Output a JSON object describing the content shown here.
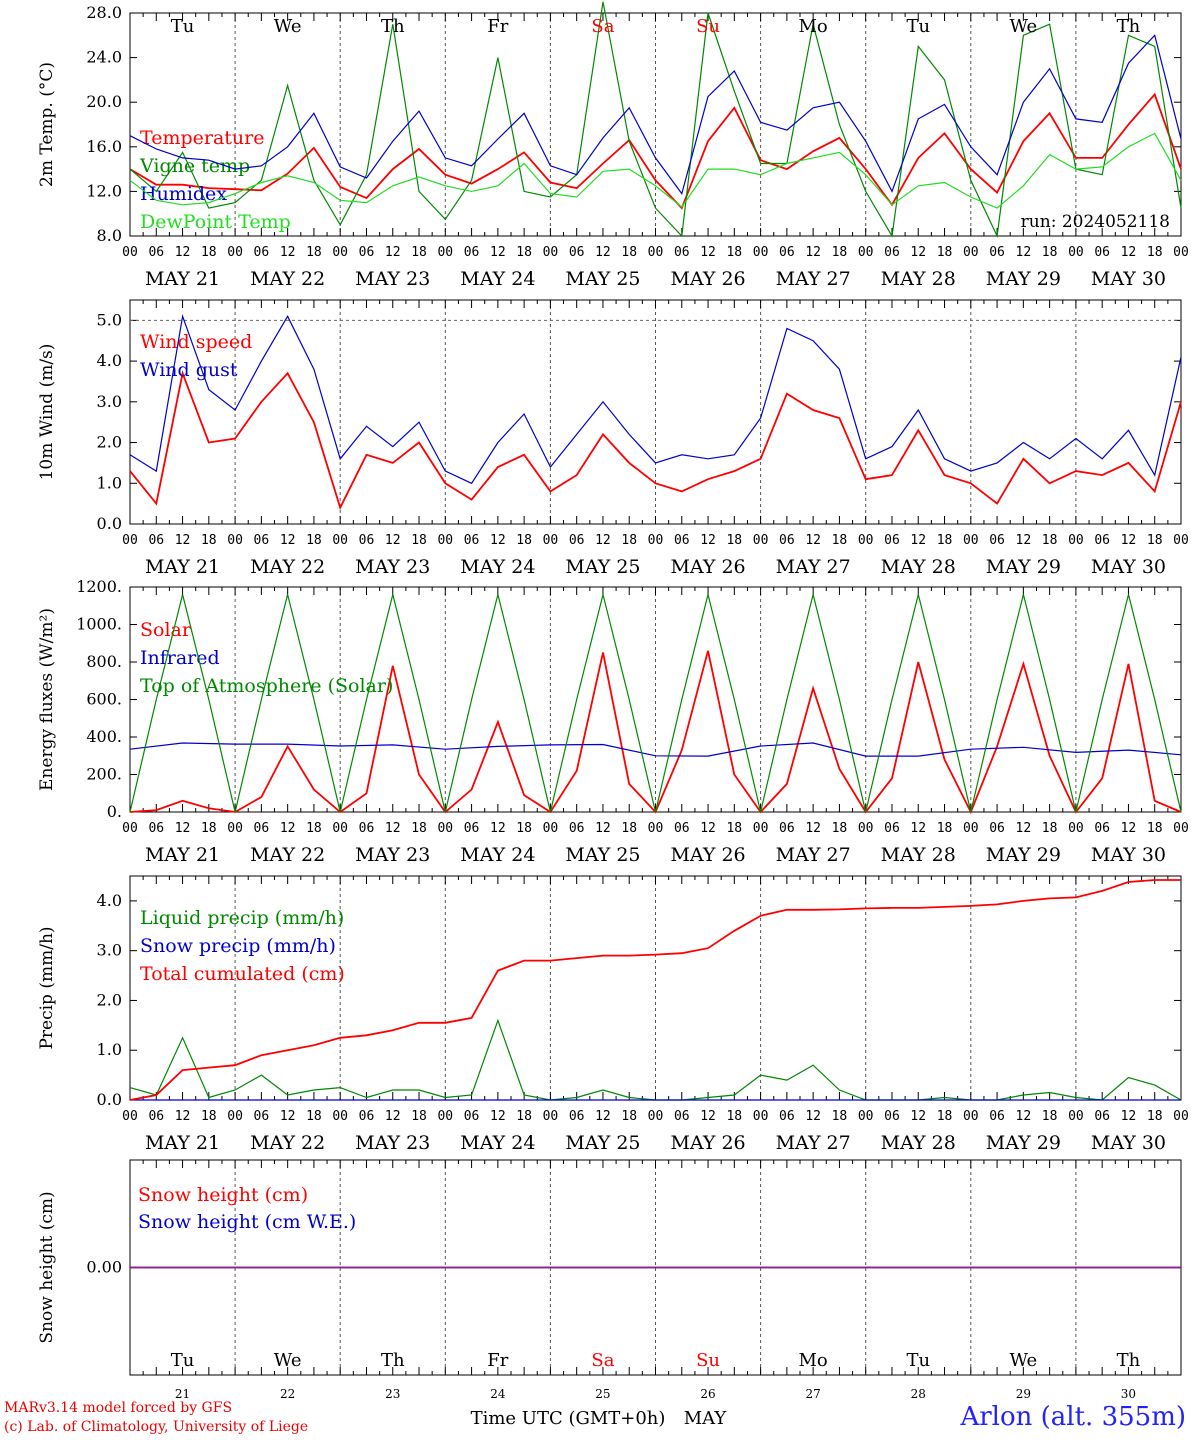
{
  "chart_data": [
    {
      "type": "line",
      "ylabel": "2m Temp. (°C)",
      "ylim": [
        8,
        28
      ],
      "yticks": [
        "8.0",
        "12.0",
        "16.0",
        "20.0",
        "24.0",
        "28.0"
      ],
      "run_label": "run: 2024052118",
      "series": [
        {
          "name": "Temperature",
          "color": "#ff0000",
          "x": [
            0,
            6,
            12,
            18,
            24,
            30,
            36,
            42,
            48,
            54,
            60,
            66,
            72,
            78,
            84,
            90,
            96,
            102,
            108,
            114,
            120,
            126,
            132,
            138,
            144,
            150,
            156,
            162,
            168,
            174,
            180,
            186,
            192,
            198,
            204,
            210,
            216,
            222,
            228,
            234,
            240
          ],
          "values": [
            14.0,
            12.6,
            12.6,
            12.3,
            12.2,
            12.1,
            13.6,
            15.9,
            12.4,
            11.4,
            14.0,
            15.8,
            13.5,
            12.7,
            14.0,
            15.5,
            12.8,
            12.3,
            14.5,
            16.6,
            13.0,
            10.5,
            16.5,
            19.5,
            14.8,
            14.0,
            15.6,
            16.8,
            14.0,
            10.8,
            15.0,
            17.2,
            14.0,
            11.9,
            16.5,
            19.0,
            15.0,
            15.0,
            18.0,
            20.7,
            14.0
          ]
        },
        {
          "name": "Vigne temp",
          "color": "#008800",
          "x": [
            0,
            6,
            12,
            18,
            24,
            30,
            36,
            42,
            48,
            54,
            60,
            66,
            72,
            78,
            84,
            90,
            96,
            102,
            108,
            114,
            120,
            126,
            132,
            138,
            144,
            150,
            156,
            162,
            168,
            174,
            180,
            186,
            192,
            198,
            204,
            210,
            216,
            222,
            228,
            234,
            240
          ],
          "values": [
            14.0,
            12.0,
            15.5,
            10.5,
            11.0,
            13.0,
            21.5,
            13.0,
            9.0,
            13.5,
            27.0,
            12.0,
            9.5,
            13.0,
            24.0,
            12.0,
            11.5,
            13.5,
            29.0,
            16.5,
            10.5,
            8.0,
            28.0,
            21.0,
            14.5,
            14.5,
            27.0,
            18.0,
            12.0,
            8.0,
            25.0,
            22.0,
            13.0,
            8.0,
            26.0,
            27.0,
            14.0,
            13.5,
            26.0,
            25.0,
            10.5
          ]
        },
        {
          "name": "Humidex",
          "color": "#0000cc",
          "x": [
            0,
            6,
            12,
            18,
            24,
            30,
            36,
            42,
            48,
            54,
            60,
            66,
            72,
            78,
            84,
            90,
            96,
            102,
            108,
            114,
            120,
            126,
            132,
            138,
            144,
            150,
            156,
            162,
            168,
            174,
            180,
            186,
            192,
            198,
            204,
            210,
            216,
            222,
            228,
            234,
            240
          ],
          "values": [
            17.0,
            15.8,
            15.0,
            14.8,
            14.0,
            14.3,
            16.0,
            19.0,
            14.2,
            13.2,
            16.5,
            19.2,
            15.0,
            14.3,
            16.7,
            19.0,
            14.3,
            13.5,
            16.8,
            19.5,
            15.0,
            11.8,
            20.5,
            22.8,
            18.2,
            17.5,
            19.5,
            20.0,
            16.5,
            12.0,
            18.5,
            19.8,
            16.0,
            13.5,
            20.0,
            23.0,
            18.5,
            18.2,
            23.5,
            26.0,
            16.7
          ]
        },
        {
          "name": "DewPoint Temp",
          "color": "#22dd22",
          "x": [
            0,
            6,
            12,
            18,
            24,
            30,
            36,
            42,
            48,
            54,
            60,
            66,
            72,
            78,
            84,
            90,
            96,
            102,
            108,
            114,
            120,
            126,
            132,
            138,
            144,
            150,
            156,
            162,
            168,
            174,
            180,
            186,
            192,
            198,
            204,
            210,
            216,
            222,
            228,
            234,
            240
          ],
          "values": [
            13.0,
            11.2,
            10.8,
            11.0,
            11.8,
            12.8,
            13.4,
            12.8,
            11.2,
            11.0,
            12.5,
            13.3,
            12.5,
            12.0,
            12.5,
            14.5,
            11.8,
            11.5,
            13.8,
            14.0,
            12.5,
            10.6,
            14.0,
            14.0,
            13.5,
            14.5,
            15.0,
            15.5,
            13.5,
            10.8,
            12.5,
            12.8,
            11.5,
            10.5,
            12.5,
            15.3,
            14.0,
            14.2,
            16.0,
            17.2,
            13.0
          ]
        }
      ]
    },
    {
      "type": "line",
      "ylabel": "10m Wind (m/s)",
      "ylim": [
        0,
        5.5
      ],
      "yticks": [
        "0.0",
        "1.0",
        "2.0",
        "3.0",
        "4.0",
        "5.0"
      ],
      "series": [
        {
          "name": "Wind speed",
          "color": "#ff0000",
          "x": [
            0,
            6,
            12,
            18,
            24,
            30,
            36,
            42,
            48,
            54,
            60,
            66,
            72,
            78,
            84,
            90,
            96,
            102,
            108,
            114,
            120,
            126,
            132,
            138,
            144,
            150,
            156,
            162,
            168,
            174,
            180,
            186,
            192,
            198,
            204,
            210,
            216,
            222,
            228,
            234,
            240
          ],
          "values": [
            1.3,
            0.5,
            3.7,
            2.0,
            2.1,
            3.0,
            3.7,
            2.5,
            0.4,
            1.7,
            1.5,
            2.0,
            1.0,
            0.6,
            1.4,
            1.7,
            0.8,
            1.2,
            2.2,
            1.5,
            1.0,
            0.8,
            1.1,
            1.3,
            1.6,
            3.2,
            2.8,
            2.6,
            1.1,
            1.2,
            2.3,
            1.2,
            1.0,
            0.5,
            1.6,
            1.0,
            1.3,
            1.2,
            1.5,
            0.8,
            3.0
          ]
        },
        {
          "name": "Wind gust",
          "color": "#0000cc",
          "x": [
            0,
            6,
            12,
            18,
            24,
            30,
            36,
            42,
            48,
            54,
            60,
            66,
            72,
            78,
            84,
            90,
            96,
            102,
            108,
            114,
            120,
            126,
            132,
            138,
            144,
            150,
            156,
            162,
            168,
            174,
            180,
            186,
            192,
            198,
            204,
            210,
            216,
            222,
            228,
            234,
            240
          ],
          "values": [
            1.7,
            1.3,
            5.1,
            3.3,
            2.8,
            4.0,
            5.1,
            3.8,
            1.6,
            2.4,
            1.9,
            2.5,
            1.3,
            1.0,
            2.0,
            2.7,
            1.4,
            2.2,
            3.0,
            2.2,
            1.5,
            1.7,
            1.6,
            1.7,
            2.6,
            4.8,
            4.5,
            3.8,
            1.6,
            1.9,
            2.8,
            1.6,
            1.3,
            1.5,
            2.0,
            1.6,
            2.1,
            1.6,
            2.3,
            1.2,
            4.1
          ]
        }
      ]
    },
    {
      "type": "line",
      "ylabel": "Energy fluxes (W/m²)",
      "ylim": [
        0,
        1200
      ],
      "yticks": [
        "0.",
        "200.",
        "400.",
        "600.",
        "800.",
        "1000.",
        "1200."
      ],
      "series": [
        {
          "name": "Solar",
          "color": "#ff0000",
          "x": [
            0,
            6,
            12,
            18,
            24,
            30,
            36,
            42,
            48,
            54,
            60,
            66,
            72,
            78,
            84,
            90,
            96,
            102,
            108,
            114,
            120,
            126,
            132,
            138,
            144,
            150,
            156,
            162,
            168,
            174,
            180,
            186,
            192,
            198,
            204,
            210,
            216,
            222,
            228,
            234,
            240
          ],
          "values": [
            0,
            10,
            60,
            20,
            0,
            80,
            350,
            120,
            0,
            100,
            780,
            200,
            0,
            120,
            480,
            90,
            0,
            220,
            850,
            150,
            0,
            330,
            860,
            200,
            0,
            150,
            660,
            230,
            0,
            180,
            800,
            280,
            0,
            350,
            790,
            300,
            0,
            180,
            790,
            60,
            0
          ]
        },
        {
          "name": "Infrared",
          "color": "#0000cc",
          "x": [
            0,
            12,
            24,
            36,
            48,
            60,
            72,
            84,
            96,
            108,
            120,
            132,
            144,
            156,
            168,
            180,
            192,
            204,
            216,
            228,
            240
          ],
          "values": [
            335,
            368,
            362,
            362,
            352,
            358,
            335,
            350,
            358,
            360,
            300,
            298,
            352,
            368,
            298,
            298,
            335,
            345,
            318,
            330,
            305
          ]
        },
        {
          "name": "Top of Atmosphere (Solar)",
          "color": "#008800",
          "x": [
            0,
            6,
            12,
            18,
            24,
            30,
            36,
            42,
            48,
            54,
            60,
            66,
            72,
            78,
            84,
            90,
            96,
            102,
            108,
            114,
            120,
            126,
            132,
            138,
            144,
            150,
            156,
            162,
            168,
            174,
            180,
            186,
            192,
            198,
            204,
            210,
            216,
            222,
            228,
            234,
            240
          ],
          "values": [
            0,
            600,
            1160,
            600,
            0,
            600,
            1160,
            600,
            0,
            600,
            1160,
            600,
            0,
            600,
            1160,
            600,
            0,
            600,
            1160,
            600,
            0,
            600,
            1160,
            600,
            0,
            600,
            1160,
            600,
            0,
            600,
            1160,
            600,
            0,
            600,
            1160,
            600,
            0,
            600,
            1160,
            600,
            0
          ]
        }
      ]
    },
    {
      "type": "line",
      "ylabel": "Precip (mm/h)",
      "ylim": [
        0,
        4.5
      ],
      "yticks": [
        "0.0",
        "1.0",
        "2.0",
        "3.0",
        "4.0"
      ],
      "series": [
        {
          "name": "Liquid precip (mm/h)",
          "color": "#008800",
          "x": [
            0,
            6,
            12,
            18,
            24,
            30,
            36,
            42,
            48,
            54,
            60,
            66,
            72,
            78,
            84,
            90,
            96,
            102,
            108,
            114,
            120,
            126,
            132,
            138,
            144,
            150,
            156,
            162,
            168,
            174,
            180,
            186,
            192,
            198,
            204,
            210,
            216,
            222,
            228,
            234,
            240
          ],
          "values": [
            0.25,
            0.1,
            1.25,
            0.05,
            0.2,
            0.5,
            0.1,
            0.2,
            0.25,
            0.05,
            0.2,
            0.2,
            0.05,
            0.1,
            1.6,
            0.1,
            0.0,
            0.05,
            0.2,
            0.05,
            0.0,
            0.0,
            0.05,
            0.1,
            0.5,
            0.4,
            0.7,
            0.2,
            0.0,
            0.0,
            0.0,
            0.05,
            0.0,
            0.0,
            0.1,
            0.15,
            0.05,
            0.0,
            0.45,
            0.3,
            0.0
          ]
        },
        {
          "name": "Snow precip (mm/h)",
          "color": "#0000cc",
          "x": [
            0,
            240
          ],
          "values": [
            0,
            0
          ]
        },
        {
          "name": "Total cumulated (cm)",
          "color": "#ff0000",
          "x": [
            0,
            6,
            12,
            18,
            24,
            30,
            36,
            42,
            48,
            54,
            60,
            66,
            72,
            78,
            84,
            90,
            96,
            102,
            108,
            114,
            120,
            126,
            132,
            138,
            144,
            150,
            156,
            162,
            168,
            174,
            180,
            186,
            192,
            198,
            204,
            210,
            216,
            222,
            228,
            234,
            240
          ],
          "values": [
            0.0,
            0.1,
            0.6,
            0.65,
            0.7,
            0.9,
            1.0,
            1.1,
            1.25,
            1.3,
            1.4,
            1.55,
            1.55,
            1.65,
            2.6,
            2.8,
            2.8,
            2.85,
            2.9,
            2.9,
            2.92,
            2.95,
            3.05,
            3.4,
            3.7,
            3.82,
            3.82,
            3.83,
            3.85,
            3.86,
            3.86,
            3.88,
            3.9,
            3.93,
            4.0,
            4.05,
            4.07,
            4.2,
            4.38,
            4.42,
            4.42
          ]
        }
      ]
    },
    {
      "type": "line",
      "ylabel": "Snow height (cm)",
      "ylim": [
        -1,
        1
      ],
      "yticks": [
        "0.00"
      ],
      "series": [
        {
          "name": "Snow height (cm)",
          "color": "#ff0000",
          "x": [
            0,
            240
          ],
          "values": [
            0,
            0
          ]
        },
        {
          "name": "Snow height (cm W.E.)",
          "color": "#0000cc",
          "x": [
            0,
            240
          ],
          "values": [
            0,
            0
          ]
        }
      ]
    }
  ],
  "days": {
    "weekdays": [
      "Tu",
      "We",
      "Th",
      "Fr",
      "Sa",
      "Su",
      "Mo",
      "Tu",
      "We",
      "Th"
    ],
    "weekday_colors": [
      "#000000",
      "#000000",
      "#000000",
      "#000000",
      "#ff0000",
      "#ff0000",
      "#000000",
      "#000000",
      "#000000",
      "#000000"
    ],
    "dates": [
      "MAY 21",
      "MAY 22",
      "MAY 23",
      "MAY 24",
      "MAY 25",
      "MAY 26",
      "MAY 27",
      "MAY 28",
      "MAY 29",
      "MAY 30"
    ],
    "day_numbers": [
      "21",
      "22",
      "23",
      "24",
      "25",
      "26",
      "27",
      "28",
      "29",
      "30"
    ],
    "hour_ticks": [
      "00",
      "06",
      "12",
      "18"
    ],
    "last_tick": "00"
  },
  "bottom_axis": {
    "xlabel": "Time UTC (GMT+0h)",
    "month": "MAY"
  },
  "footer": {
    "credit_line1": "MARv3.14 model forced by GFS",
    "credit_line2": "(c) Lab. of Climatology, University of Liege",
    "station": "Arlon (alt. 355m)"
  }
}
